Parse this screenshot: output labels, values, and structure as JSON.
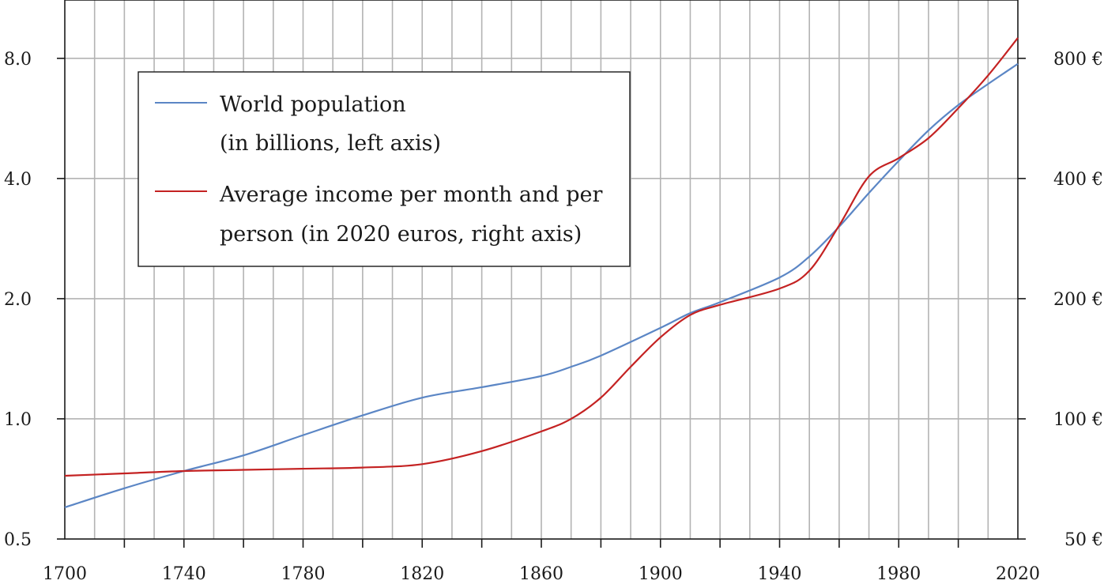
{
  "chart_data": {
    "type": "line",
    "x_ticks": [
      "1700",
      "1740",
      "1780",
      "1820",
      "1860",
      "1900",
      "1940",
      "1980",
      "2020"
    ],
    "x_range": [
      1700,
      2020
    ],
    "left_axis": {
      "scale": "log2",
      "range": [
        0.5,
        11.2
      ],
      "tick_values": [
        0.5,
        1,
        2,
        4,
        8
      ],
      "tick_labels": [
        "0.5",
        "1.0",
        "2.0",
        "4.0",
        "8.0"
      ]
    },
    "right_axis": {
      "scale": "log2",
      "range": [
        50,
        1120
      ],
      "tick_values": [
        50,
        100,
        200,
        400,
        800
      ],
      "tick_labels": [
        "50 €",
        "100 €",
        "200 €",
        "400 €",
        "800 €"
      ]
    },
    "grid": true,
    "legend_position": "top-left",
    "series": [
      {
        "name": "World population",
        "name_line2": "(in billions, left axis)",
        "axis": "left",
        "color": "#5b86c5",
        "points": [
          [
            1700,
            0.6
          ],
          [
            1720,
            0.67
          ],
          [
            1740,
            0.74
          ],
          [
            1760,
            0.81
          ],
          [
            1780,
            0.91
          ],
          [
            1800,
            1.02
          ],
          [
            1820,
            1.13
          ],
          [
            1840,
            1.2
          ],
          [
            1860,
            1.28
          ],
          [
            1870,
            1.35
          ],
          [
            1880,
            1.44
          ],
          [
            1900,
            1.69
          ],
          [
            1910,
            1.84
          ],
          [
            1920,
            1.96
          ],
          [
            1940,
            2.26
          ],
          [
            1950,
            2.55
          ],
          [
            1960,
            3.03
          ],
          [
            1970,
            3.68
          ],
          [
            1980,
            4.43
          ],
          [
            1990,
            5.28
          ],
          [
            2000,
            6.11
          ],
          [
            2010,
            6.9
          ],
          [
            2020,
            7.75
          ]
        ]
      },
      {
        "name": "Average income per month and per",
        "name_line2": "person (in 2020 euros, right axis)",
        "axis": "right",
        "color": "#c42222",
        "points": [
          [
            1700,
            72
          ],
          [
            1720,
            73
          ],
          [
            1740,
            74
          ],
          [
            1760,
            74.5
          ],
          [
            1780,
            75
          ],
          [
            1800,
            75.5
          ],
          [
            1820,
            77
          ],
          [
            1840,
            83
          ],
          [
            1860,
            93
          ],
          [
            1870,
            100
          ],
          [
            1880,
            113
          ],
          [
            1890,
            135
          ],
          [
            1900,
            160
          ],
          [
            1910,
            182
          ],
          [
            1920,
            193
          ],
          [
            1940,
            212
          ],
          [
            1950,
            235
          ],
          [
            1960,
            305
          ],
          [
            1970,
            405
          ],
          [
            1980,
            450
          ],
          [
            1990,
            505
          ],
          [
            2000,
            600
          ],
          [
            2010,
            725
          ],
          [
            2020,
            900
          ]
        ]
      }
    ]
  }
}
